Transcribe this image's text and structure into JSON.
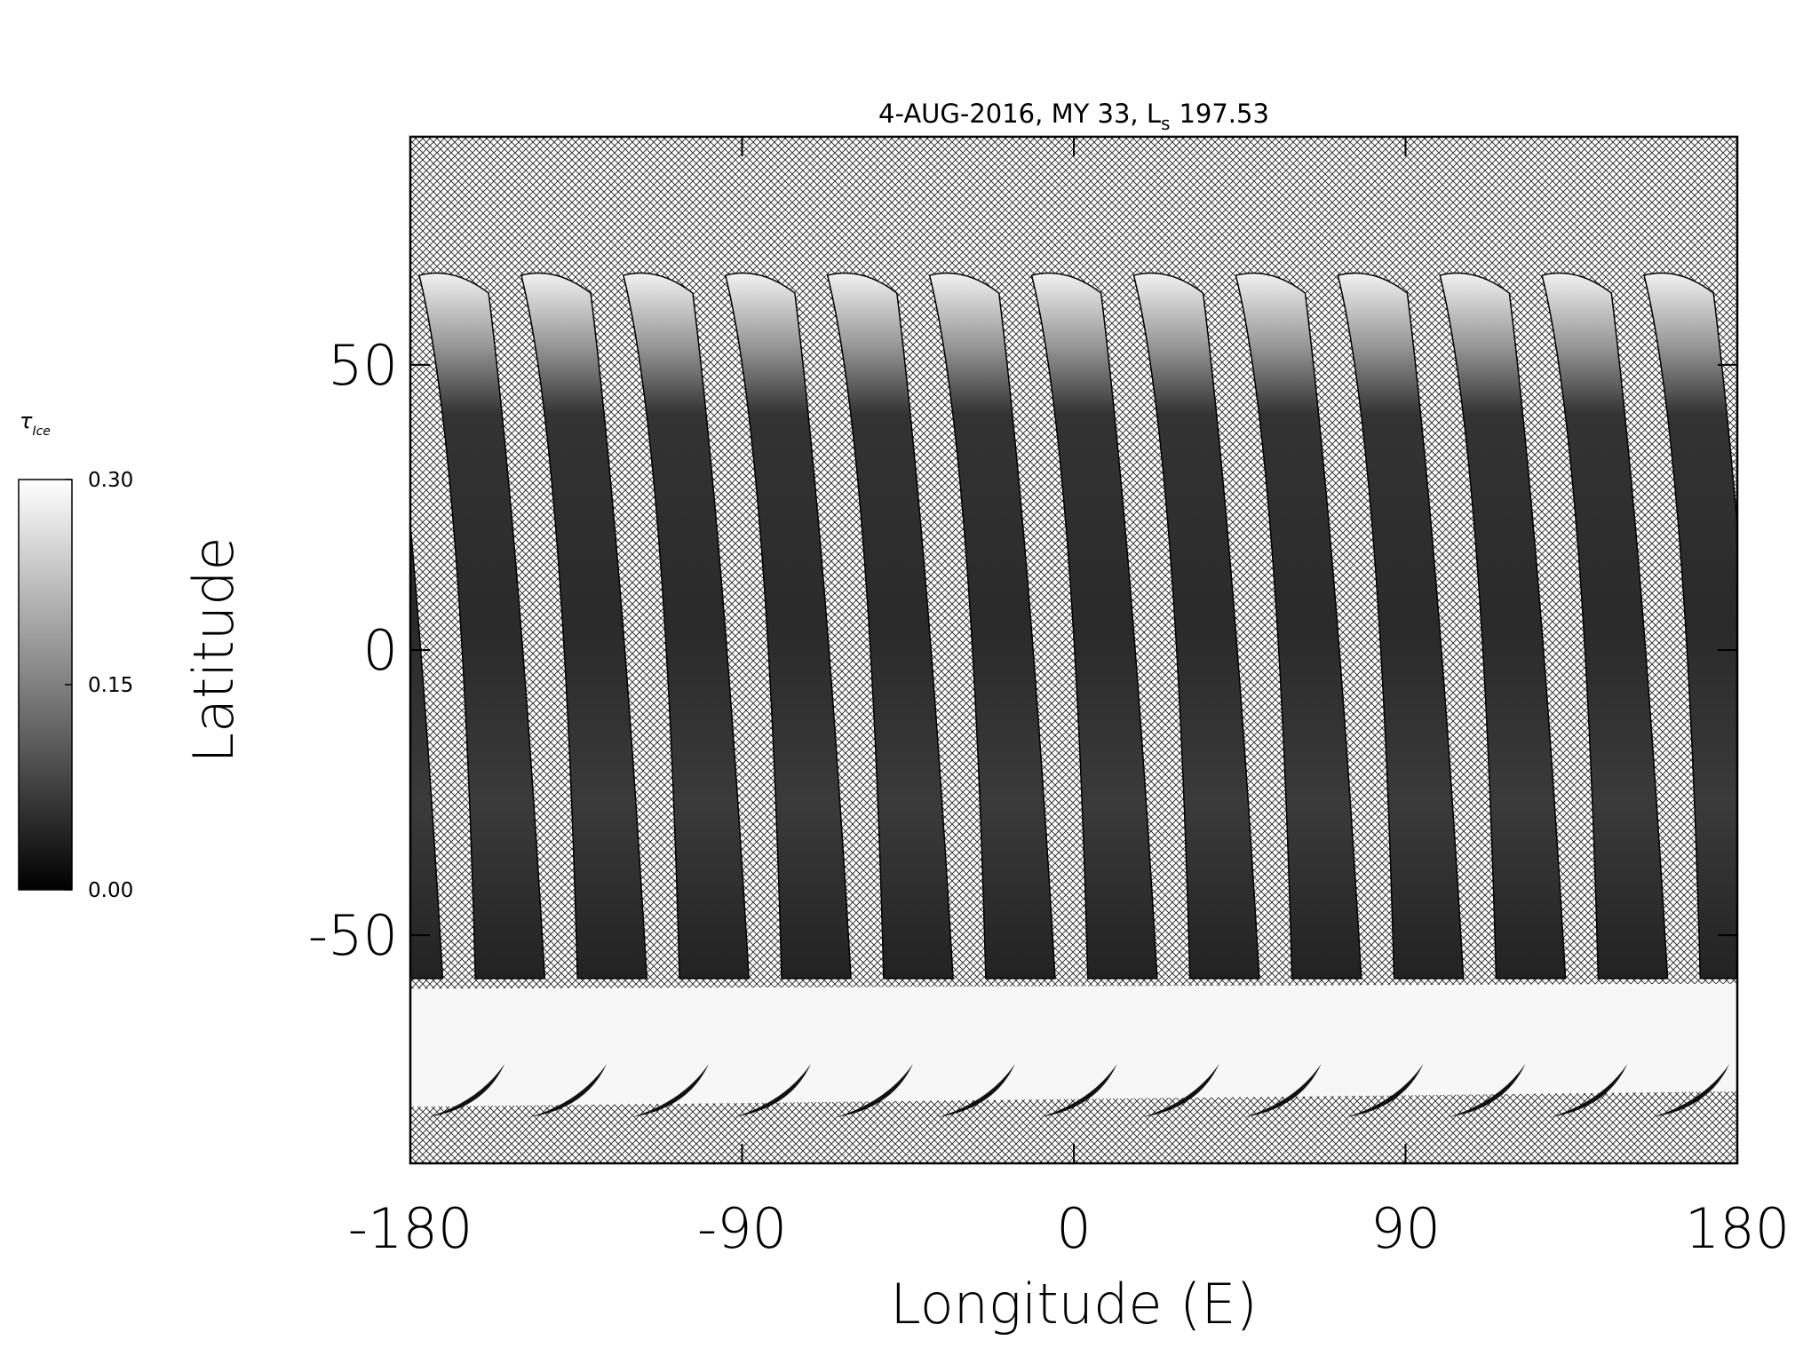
{
  "chart_data": {
    "type": "map",
    "title": "4-AUG-2016, MY 33,",
    "title_symbol": "L",
    "title_subscript": "s",
    "title_value": 197.53,
    "xlabel": "Longitude (E)",
    "ylabel": "Latitude",
    "xlim": [
      -180,
      180
    ],
    "xticks": [
      -180,
      -90,
      0,
      90,
      180
    ],
    "ylim": [
      -90,
      90
    ],
    "yticks": [
      -50,
      0,
      50
    ],
    "colorbar": {
      "symbol": "τ",
      "subscript": "Ice",
      "lim": [
        0,
        0.3
      ],
      "ticks": [
        {
          "value": 0,
          "label": "0.00"
        },
        {
          "value": 0.15,
          "label": "0.15"
        },
        {
          "value": 0.3,
          "label": "0.30"
        }
      ],
      "colors": [
        "#000000",
        "#ffffff"
      ]
    }
  }
}
